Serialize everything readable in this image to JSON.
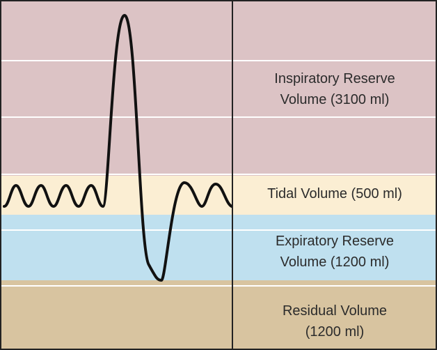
{
  "zones": [
    {
      "id": "irv",
      "lines": [
        "Inspiratory Reserve",
        "Volume (3100 ml)"
      ],
      "color": "#dcc3c5"
    },
    {
      "id": "tv",
      "lines": [
        "Tidal Volume (500 ml)"
      ],
      "color": "#fbeed3"
    },
    {
      "id": "erv",
      "lines": [
        "Expiratory Reserve",
        "Volume (1200 ml)"
      ],
      "color": "#bfe0ef"
    },
    {
      "id": "rv",
      "lines": [
        "Residual Volume",
        "(1200 ml)"
      ],
      "color": "#d8c4a0"
    }
  ],
  "curve": {
    "color": "#111111"
  },
  "grid_color": "#ffffff",
  "border_color": "#222222"
}
